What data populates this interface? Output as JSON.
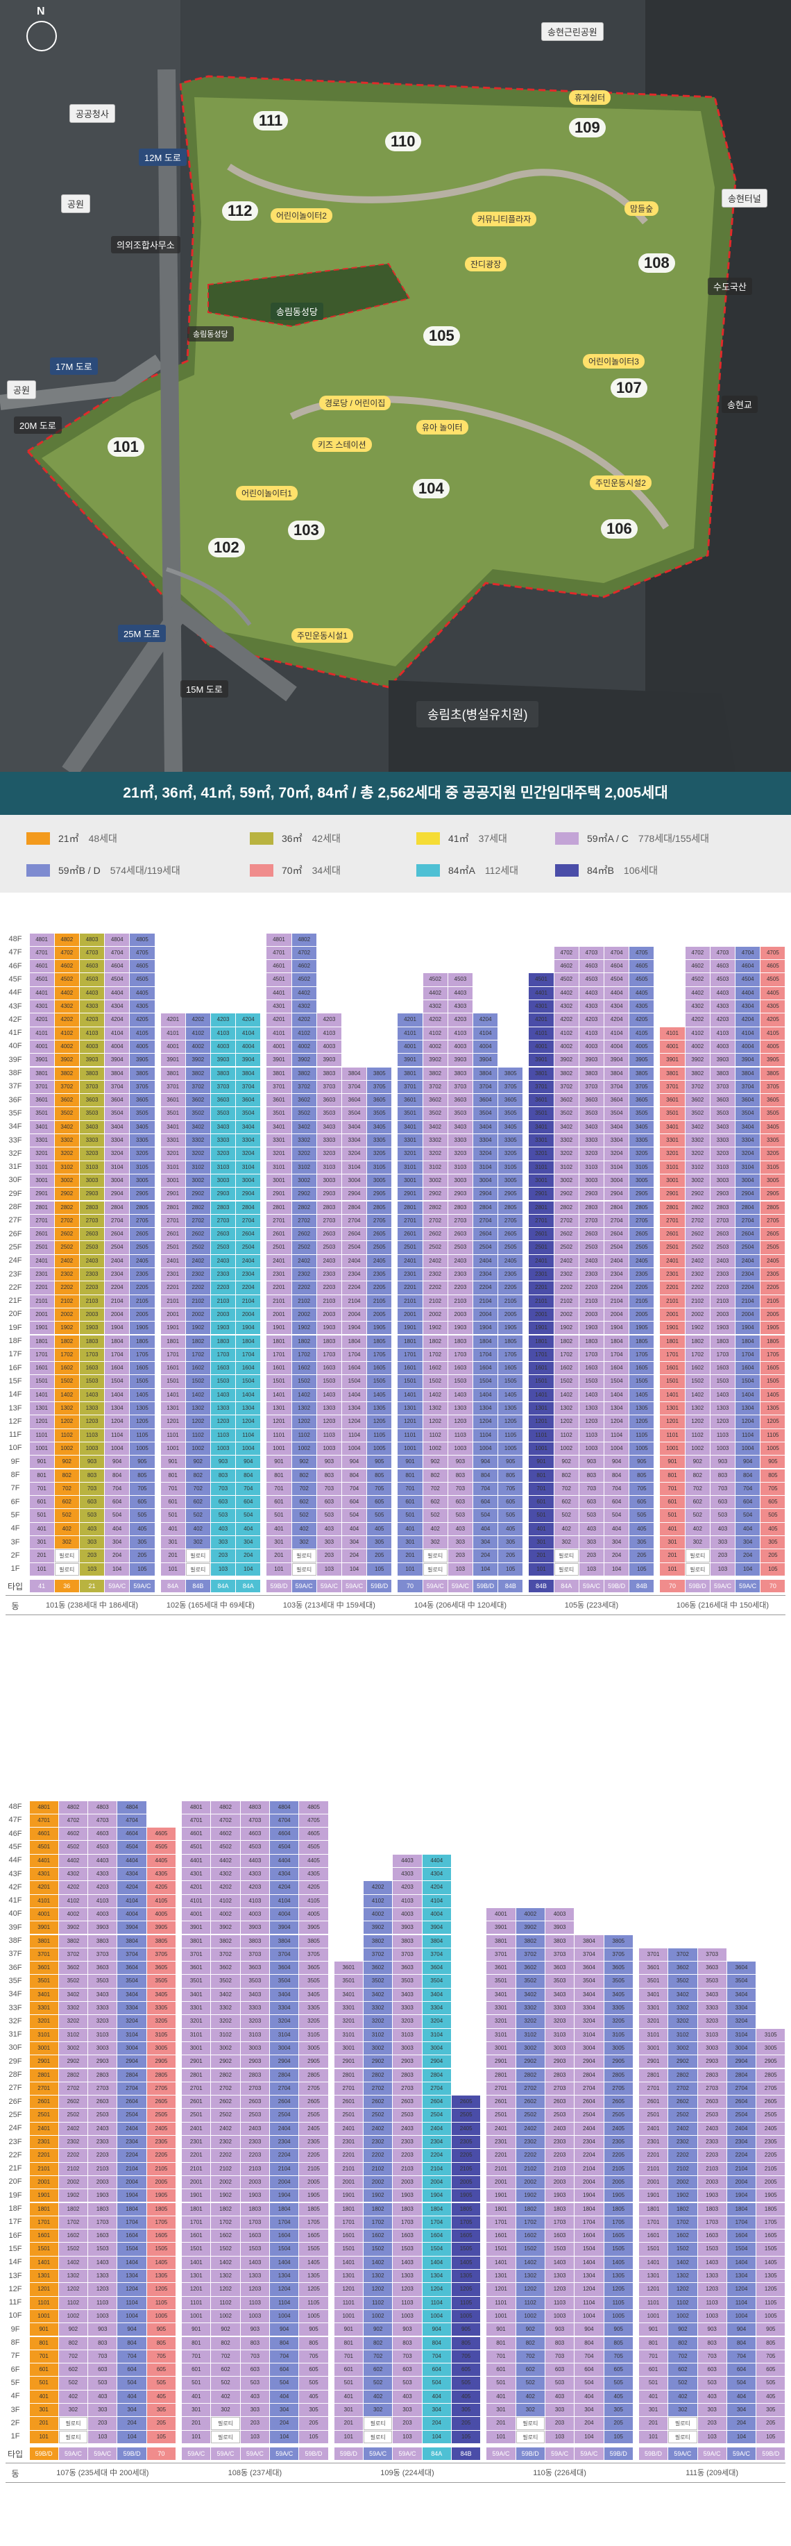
{
  "map": {
    "labels": {
      "park": "송현근린공원",
      "office": "공공청사",
      "park_w1": "공원",
      "park_w2": "공원",
      "road_12": "12M 도로",
      "road_17": "17M 도로",
      "road_25": "25M 도로",
      "road_20": "20M 도로",
      "road_15": "15M 도로",
      "school": "송림동성당",
      "tunnel": "송현터널",
      "elem": "송림초(병설유치원)",
      "side1": "의외조합사무소",
      "side2": "수도국산",
      "side3": "송현교",
      "side4": "송림동성당"
    },
    "buildings": [
      "101",
      "102",
      "103",
      "104",
      "105",
      "106",
      "107",
      "108",
      "109",
      "110",
      "111",
      "112"
    ],
    "facilities": [
      "주민운동시설1",
      "어린이놀이터1",
      "어린이놀이터2",
      "어린이놀이터3",
      "주민운동시설2",
      "커뮤니티플라자",
      "잔디광장",
      "맘들숲",
      "휴게쉼터",
      "경로당 / 어린이집",
      "키즈 스테이션",
      "유아 놀이터"
    ]
  },
  "summary": "21㎡, 36㎡, 41㎡, 59㎡, 70㎡, 84㎡  /  총 2,562세대 중 공공지원 민간임대주택 2,005세대",
  "legend": [
    {
      "label": "21㎡",
      "units": "48세대",
      "color": "#f39a1d"
    },
    {
      "label": "36㎡",
      "units": "42세대",
      "color": "#b9b340"
    },
    {
      "label": "41㎡",
      "units": "37세대",
      "color": "#f5dc35"
    },
    {
      "label": "59㎡A / C",
      "units": "778세대/155세대",
      "color": "#c3a4d6"
    },
    {
      "label": "59㎡B / D",
      "units": "574세대/119세대",
      "color": "#7e8bd0"
    },
    {
      "label": "70㎡",
      "units": "34세대",
      "color": "#f08c8c"
    },
    {
      "label": "84㎡A",
      "units": "112세대",
      "color": "#4ec0d4"
    },
    {
      "label": "84㎡B",
      "units": "106세대",
      "color": "#4a4da8"
    }
  ],
  "chart_labels": {
    "type_row": "타입",
    "dong_row": "동",
    "pilotis": "필로티"
  },
  "chart_data": [
    {
      "type": "table",
      "floors_max": 48,
      "buildings": [
        {
          "name": "101동",
          "caption": "101동 (238세대 中 186세대)",
          "cols": [
            {
              "h": 48,
              "c": "#c3a4d6"
            },
            {
              "h": 48,
              "c": "#f39a1d"
            },
            {
              "h": 48,
              "c": "#b9b340"
            },
            {
              "h": 48,
              "c": "#c3a4d6"
            },
            {
              "h": 48,
              "c": "#7e8bd0"
            }
          ],
          "types": [
            "41",
            "36",
            "21",
            "59A/C",
            "59A/C"
          ]
        },
        {
          "name": "102동",
          "caption": "102동 (165세대 中 69세대)",
          "cols": [
            {
              "h": 42,
              "c": "#c3a4d6"
            },
            {
              "h": 42,
              "c": "#7e8bd0"
            },
            {
              "h": 42,
              "c": "#4ec0d4"
            },
            {
              "h": 42,
              "c": "#4ec0d4"
            }
          ],
          "types": [
            "84A",
            "84B",
            "84A",
            "84A"
          ]
        },
        {
          "name": "103동",
          "caption": "103동 (213세대 中 159세대)",
          "cols": [
            {
              "h": 48,
              "c": "#c3a4d6"
            },
            {
              "h": 48,
              "c": "#7e8bd0"
            },
            {
              "h": 42,
              "c": "#c3a4d6"
            },
            {
              "h": 38,
              "c": "#c3a4d6"
            },
            {
              "h": 38,
              "c": "#7e8bd0"
            }
          ],
          "types": [
            "59B/D",
            "59A/C",
            "59A/C",
            "59A/C",
            "59B/D"
          ]
        },
        {
          "name": "104동",
          "caption": "104동 (206세대 中 120세대)",
          "cols": [
            {
              "h": 42,
              "c": "#7e8bd0"
            },
            {
              "h": 45,
              "c": "#c3a4d6"
            },
            {
              "h": 45,
              "c": "#c3a4d6"
            },
            {
              "h": 42,
              "c": "#7e8bd0"
            },
            {
              "h": 38,
              "c": "#7e8bd0"
            }
          ],
          "types": [
            "70",
            "59A/C",
            "59A/C",
            "59B/D",
            "84B"
          ]
        },
        {
          "name": "105동",
          "caption": "105동 (223세대)",
          "cols": [
            {
              "h": 45,
              "c": "#4a4da8"
            },
            {
              "h": 47,
              "c": "#c3a4d6"
            },
            {
              "h": 47,
              "c": "#c3a4d6"
            },
            {
              "h": 47,
              "c": "#c3a4d6"
            },
            {
              "h": 47,
              "c": "#7e8bd0"
            }
          ],
          "types": [
            "84B",
            "84A",
            "59A/C",
            "59B/D",
            "84B"
          ]
        },
        {
          "name": "106동",
          "caption": "106동 (216세대 中 150세대)",
          "cols": [
            {
              "h": 41,
              "c": "#f08c8c"
            },
            {
              "h": 47,
              "c": "#c3a4d6"
            },
            {
              "h": 47,
              "c": "#c3a4d6"
            },
            {
              "h": 47,
              "c": "#7e8bd0"
            },
            {
              "h": 47,
              "c": "#f08c8c"
            }
          ],
          "types": [
            "70",
            "59B/D",
            "59A/C",
            "59A/C",
            "70"
          ]
        }
      ]
    },
    {
      "type": "table",
      "floors_max": 48,
      "buildings": [
        {
          "name": "107동",
          "caption": "107동 (235세대 中 200세대)",
          "cols": [
            {
              "h": 48,
              "c": "#f39a1d"
            },
            {
              "h": 48,
              "c": "#c3a4d6"
            },
            {
              "h": 48,
              "c": "#c3a4d6"
            },
            {
              "h": 48,
              "c": "#7e8bd0"
            },
            {
              "h": 46,
              "c": "#f08c8c"
            }
          ],
          "types": [
            "59B/D",
            "59A/C",
            "59A/C",
            "59B/D",
            "70"
          ]
        },
        {
          "name": "108동",
          "caption": "108동 (237세대)",
          "cols": [
            {
              "h": 48,
              "c": "#c3a4d6"
            },
            {
              "h": 48,
              "c": "#c3a4d6"
            },
            {
              "h": 48,
              "c": "#c3a4d6"
            },
            {
              "h": 48,
              "c": "#7e8bd0"
            },
            {
              "h": 48,
              "c": "#c3a4d6"
            }
          ],
          "types": [
            "59A/C",
            "59A/C",
            "59A/C",
            "59A/C",
            "59B/D"
          ]
        },
        {
          "name": "109동",
          "caption": "109동 (224세대)",
          "cols": [
            {
              "h": 36,
              "c": "#c3a4d6"
            },
            {
              "h": 42,
              "c": "#7e8bd0"
            },
            {
              "h": 44,
              "c": "#c3a4d6"
            },
            {
              "h": 44,
              "c": "#4ec0d4"
            },
            {
              "h": 26,
              "c": "#4a4da8"
            }
          ],
          "types": [
            "59B/D",
            "59A/C",
            "59A/C",
            "84A",
            "84B"
          ]
        },
        {
          "name": "110동",
          "caption": "110동 (226세대)",
          "cols": [
            {
              "h": 40,
              "c": "#c3a4d6"
            },
            {
              "h": 40,
              "c": "#7e8bd0"
            },
            {
              "h": 40,
              "c": "#c3a4d6"
            },
            {
              "h": 38,
              "c": "#c3a4d6"
            },
            {
              "h": 38,
              "c": "#7e8bd0"
            }
          ],
          "types": [
            "59A/C",
            "59B/D",
            "59A/C",
            "59A/C",
            "59B/D"
          ]
        },
        {
          "name": "111동",
          "caption": "111동 (209세대)",
          "cols": [
            {
              "h": 37,
              "c": "#c3a4d6"
            },
            {
              "h": 37,
              "c": "#7e8bd0"
            },
            {
              "h": 37,
              "c": "#c3a4d6"
            },
            {
              "h": 36,
              "c": "#7e8bd0"
            },
            {
              "h": 31,
              "c": "#c3a4d6"
            }
          ],
          "types": [
            "59B/D",
            "59A/C",
            "59A/C",
            "59A/C",
            "59B/D"
          ]
        }
      ]
    }
  ]
}
